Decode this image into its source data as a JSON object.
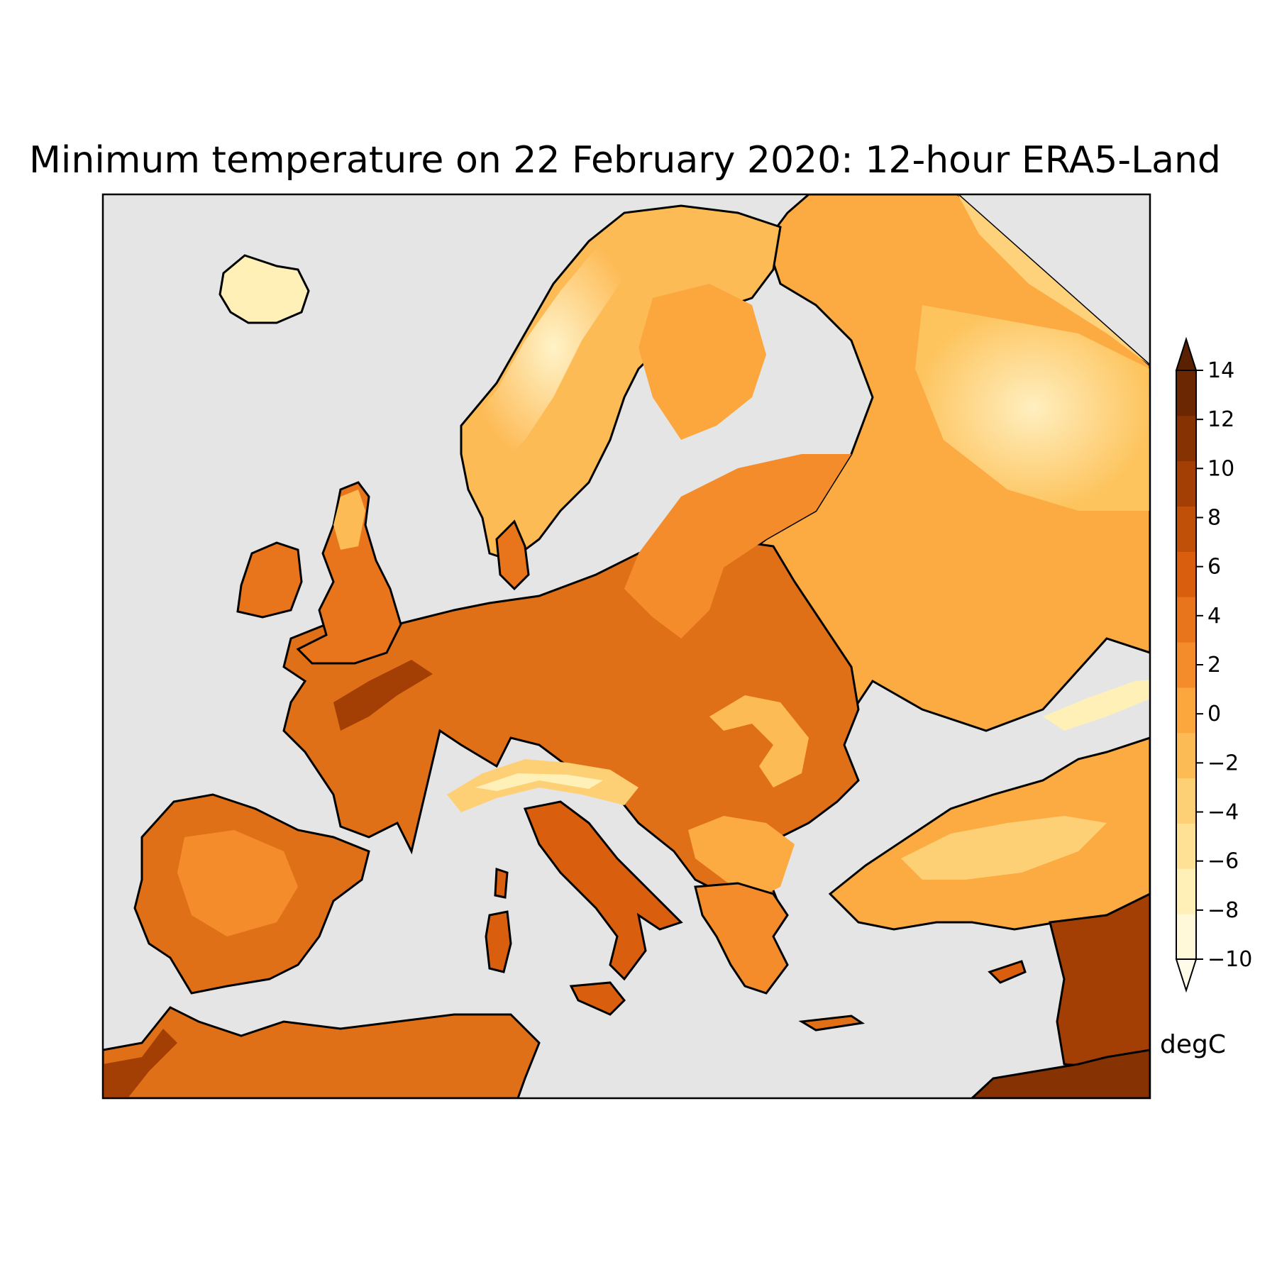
{
  "title": "Minimum temperature on 22 February 2020: 12-hour ERA5-Land",
  "colorbar": {
    "unit": "degC",
    "tick_labels": [
      "14",
      "12",
      "10",
      "8",
      "6",
      "4",
      "2",
      "0",
      "−2",
      "−4",
      "−6",
      "−8",
      "−10"
    ],
    "levels": [
      -10,
      -8,
      -6,
      -4,
      -2,
      0,
      2,
      4,
      6,
      8,
      10,
      12,
      14
    ],
    "extend": "both",
    "colors_low_to_high": [
      "#fff8d9",
      "#fff0b8",
      "#ffe196",
      "#fed076",
      "#fdbb56",
      "#fca63e",
      "#f48c2c",
      "#e8741c",
      "#d95f0e",
      "#c04f08",
      "#a33f04",
      "#863203",
      "#6a2702"
    ],
    "under_color": "#fffbe9",
    "over_color": "#5a2002"
  },
  "map": {
    "ocean_color": "#e5e5e5",
    "coastline_color": "#000000"
  }
}
